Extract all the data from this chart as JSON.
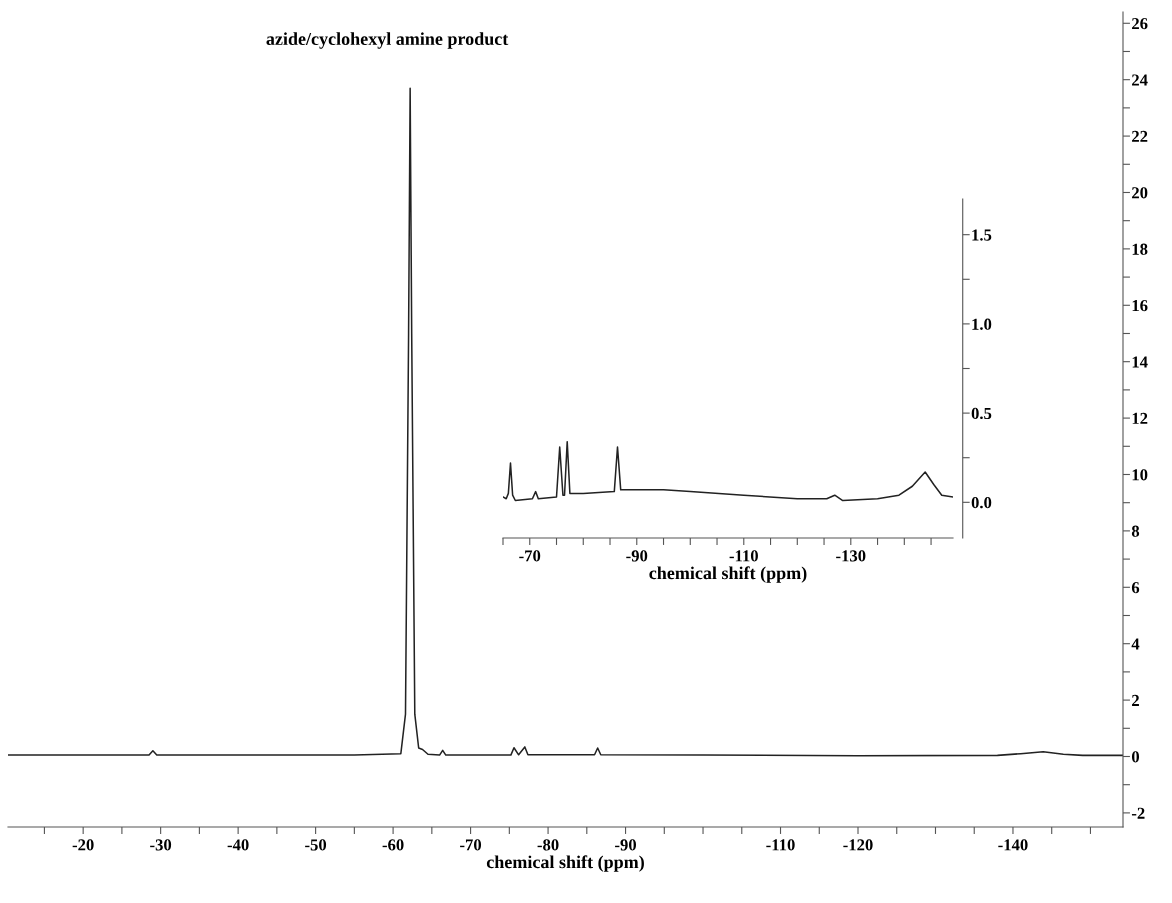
{
  "chart_data": [
    {
      "type": "line",
      "title": "azide/cyclohexyl amine product",
      "xlabel": "chemical shift (ppm)",
      "xlim": [
        -10.3,
        -154.2
      ],
      "ylim": [
        -2.5,
        26.4
      ],
      "xticks": [
        {
          "value": -15,
          "label": null
        },
        -20,
        {
          "value": -25,
          "label": null
        },
        -30,
        {
          "value": -35,
          "label": null
        },
        -40,
        {
          "value": -45,
          "label": null
        },
        -50,
        {
          "value": -55,
          "label": null
        },
        -60,
        {
          "value": -65,
          "label": null
        },
        -70,
        {
          "value": -75,
          "label": null
        },
        -80,
        {
          "value": -85,
          "label": null
        },
        -90,
        {
          "value": -95,
          "label": null
        },
        {
          "value": -100,
          "label": null
        },
        {
          "value": -105,
          "label": null
        },
        -110,
        {
          "value": -115,
          "label": null
        },
        -120,
        {
          "value": -125,
          "label": null
        },
        {
          "value": -130,
          "label": null
        },
        {
          "value": -135,
          "label": null
        },
        -140,
        {
          "value": -145,
          "label": null
        },
        {
          "value": -150,
          "label": null
        }
      ],
      "yticks": [
        -2,
        {
          "value": -1,
          "label": null
        },
        0,
        {
          "value": 1,
          "label": null
        },
        2,
        {
          "value": 3,
          "label": null
        },
        4,
        {
          "value": 5,
          "label": null
        },
        6,
        {
          "value": 7,
          "label": null
        },
        8,
        {
          "value": 9,
          "label": null
        },
        10,
        {
          "value": 11,
          "label": null
        },
        12,
        {
          "value": 13,
          "label": null
        },
        14,
        {
          "value": 15,
          "label": null
        },
        16,
        {
          "value": 17,
          "label": null
        },
        18,
        {
          "value": 19,
          "label": null
        },
        20,
        {
          "value": 21,
          "label": null
        },
        22,
        {
          "value": 23,
          "label": null
        },
        24,
        {
          "value": 25,
          "label": null
        },
        26
      ],
      "grid": false,
      "legend": false,
      "marker": "none",
      "line_style": "solid",
      "series": [
        {
          "color": "#222222",
          "x": [
            -10.3,
            -28.5,
            -29.0,
            -29.5,
            -55,
            -61.0,
            -61.6,
            -62.0,
            -62.2,
            -62.4,
            -62.8,
            -63.3,
            -63.8,
            -64.5,
            -66.0,
            -66.4,
            -66.8,
            -75.2,
            -75.6,
            -76.2,
            -77.0,
            -77.4,
            -86.0,
            -86.4,
            -86.8,
            -100,
            -120,
            -138,
            -141,
            -143.9,
            -146.5,
            -149,
            -154.2
          ],
          "values": [
            0.05,
            0.05,
            0.2,
            0.05,
            0.05,
            0.1,
            1.5,
            15,
            23.7,
            15,
            1.5,
            0.3,
            0.25,
            0.08,
            0.05,
            0.22,
            0.05,
            0.05,
            0.31,
            0.06,
            0.34,
            0.06,
            0.06,
            0.3,
            0.06,
            0.05,
            0.03,
            0.04,
            0.1,
            0.17,
            0.08,
            0.04,
            0.04
          ]
        }
      ]
    },
    {
      "type": "line",
      "xlabel": "chemical shift (ppm)",
      "xlim": [
        -65,
        -149.1
      ],
      "ylim": [
        -0.2,
        1.7
      ],
      "xticks": [
        {
          "value": -65,
          "label": null
        },
        -70,
        {
          "value": -75,
          "label": null
        },
        {
          "value": -80,
          "label": null
        },
        {
          "value": -85,
          "label": null
        },
        -90,
        {
          "value": -95,
          "label": null
        },
        {
          "value": -100,
          "label": null
        },
        {
          "value": -105,
          "label": null
        },
        -110,
        {
          "value": -115,
          "label": null
        },
        {
          "value": -120,
          "label": null
        },
        {
          "value": -125,
          "label": null
        },
        -130,
        {
          "value": -135,
          "label": null
        },
        {
          "value": -140,
          "label": null
        },
        {
          "value": -145,
          "label": null
        }
      ],
      "yticks": [
        {
          "value": 0,
          "label": "0.0"
        },
        {
          "value": 0.25,
          "label": null
        },
        0.5,
        {
          "value": 0.75,
          "label": null
        },
        {
          "value": 1,
          "label": "1.0"
        },
        {
          "value": 1.25,
          "label": null
        },
        1.5
      ],
      "grid": false,
      "legend": false,
      "marker": "none",
      "line_style": "solid",
      "series": [
        {
          "color": "#222222",
          "x": [
            -65,
            -65.6,
            -66.0,
            -66.4,
            -66.8,
            -67.3,
            -70.5,
            -71.1,
            -71.6,
            -75.0,
            -75.6,
            -76.2,
            -76.5,
            -77.0,
            -77.5,
            -80,
            -85.8,
            -86.4,
            -87.0,
            -95,
            -100,
            -110,
            -120,
            -125.5,
            -127.0,
            -128.5,
            -135,
            -139,
            -141.5,
            -143.9,
            -145.5,
            -147,
            -149.1
          ],
          "values": [
            0.03,
            0.02,
            0.05,
            0.22,
            0.04,
            0.01,
            0.02,
            0.06,
            0.02,
            0.03,
            0.31,
            0.04,
            0.04,
            0.34,
            0.05,
            0.05,
            0.06,
            0.31,
            0.07,
            0.07,
            0.06,
            0.04,
            0.02,
            0.02,
            0.04,
            0.01,
            0.02,
            0.04,
            0.09,
            0.17,
            0.1,
            0.04,
            0.03
          ]
        }
      ]
    }
  ]
}
